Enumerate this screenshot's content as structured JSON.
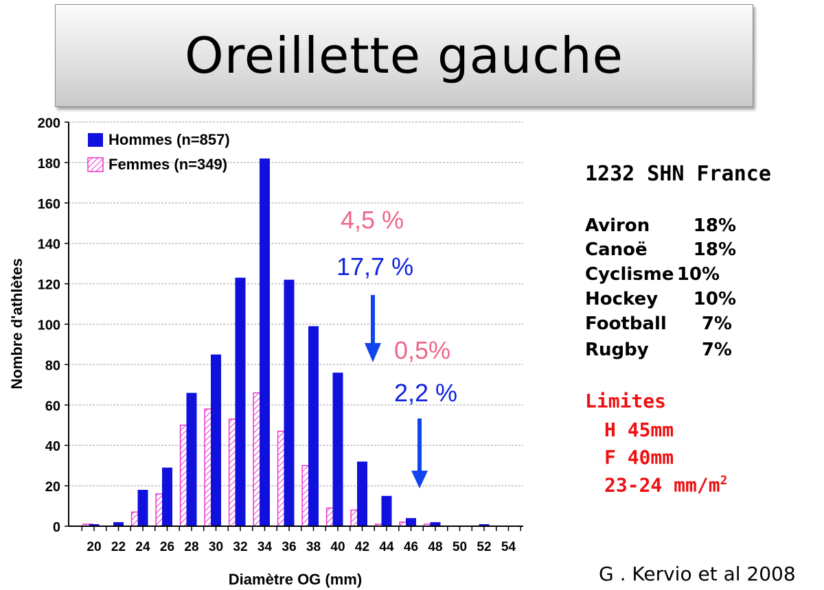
{
  "title": "Oreillette gauche",
  "chart_data": {
    "type": "bar",
    "xlabel": "Diamètre OG (mm)",
    "ylabel": "Nombre d'athlètes",
    "ylim": [
      0,
      200
    ],
    "yticks": [
      0,
      20,
      40,
      60,
      80,
      100,
      120,
      140,
      160,
      180,
      200
    ],
    "categories": [
      "20",
      "22",
      "24",
      "26",
      "28",
      "30",
      "32",
      "34",
      "36",
      "38",
      "40",
      "42",
      "44",
      "46",
      "48",
      "50",
      "52",
      "54"
    ],
    "grid": true,
    "legend_position": "top-left",
    "series": [
      {
        "name": "Femmes (n=349)",
        "color": "#ee33cc",
        "pattern": "hatched",
        "x": [
          19,
          23,
          25,
          27,
          29,
          31,
          33,
          35,
          37,
          39,
          41,
          43,
          45,
          47
        ],
        "values": [
          1,
          7,
          16,
          50,
          58,
          53,
          66,
          47,
          30,
          9,
          8,
          1,
          2,
          1
        ]
      },
      {
        "name": "Hommes (n=857)",
        "color": "#1111dd",
        "pattern": "solid",
        "x": [
          20,
          22,
          24,
          26,
          28,
          30,
          32,
          34,
          36,
          38,
          40,
          42,
          44,
          46,
          48,
          52
        ],
        "values": [
          1,
          2,
          18,
          29,
          66,
          85,
          123,
          182,
          122,
          99,
          76,
          32,
          15,
          4,
          2,
          1
        ]
      }
    ],
    "annotations": [
      {
        "text": "4,5 %",
        "color": "#ee6688"
      },
      {
        "text": "17,7 %",
        "color": "#1122dd"
      },
      {
        "text": "0,5%",
        "color": "#ee6688"
      },
      {
        "text": "2,2 %",
        "color": "#1122dd"
      }
    ]
  },
  "sidebar": {
    "title": "1232 SHN France",
    "sports": [
      {
        "name": "Aviron",
        "pct": "18%"
      },
      {
        "name": "Canoë",
        "pct": "18%"
      },
      {
        "name": "Cyclisme",
        "pct": "10%"
      },
      {
        "name": "Hockey",
        "pct": "10%"
      },
      {
        "name": "Football",
        "pct": "7%"
      },
      {
        "name": "Rugby",
        "pct": "7%"
      }
    ],
    "limits_label": "Limites",
    "limit_h": "H 45mm",
    "limit_f": "F 40mm",
    "limit_idx": "23-24 mm/m",
    "limit_idx_sup": "2"
  },
  "citation": "G . Kervio et al 2008",
  "colors": {
    "hommes": "#1111dd",
    "femmes": "#ee33cc",
    "limites": "#ee1111",
    "arrow": "#1144ee"
  }
}
